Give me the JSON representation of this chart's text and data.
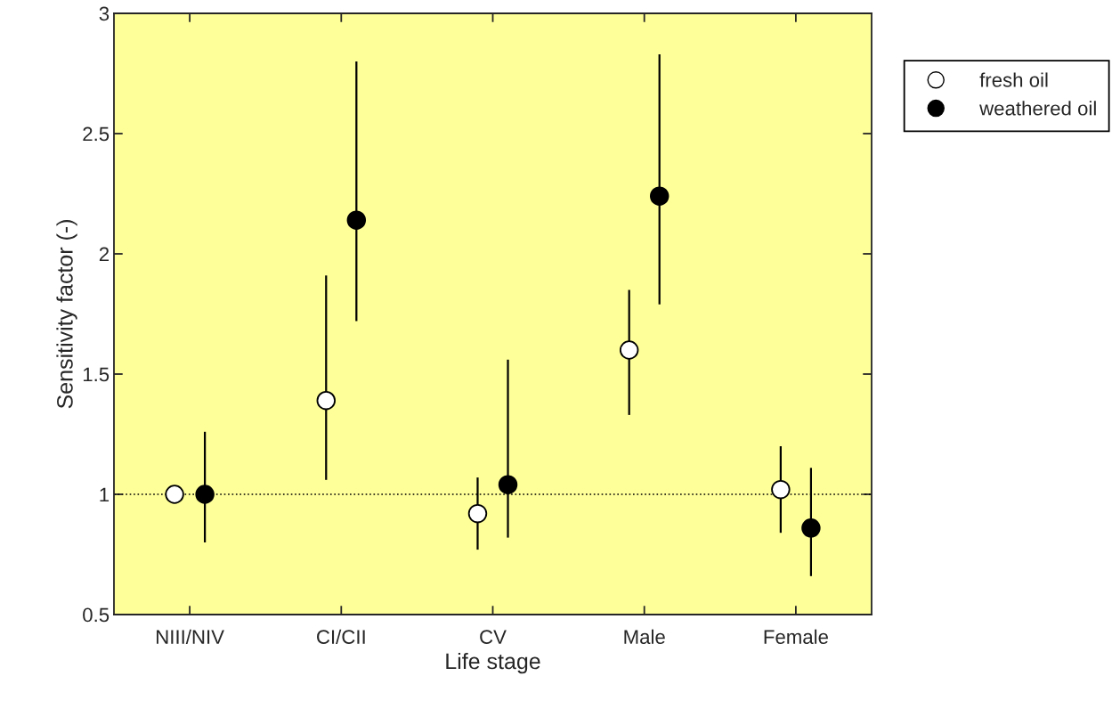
{
  "chart_data": {
    "type": "scatter",
    "xlabel": "Life stage",
    "ylabel": "Sensitivity factor (-)",
    "categories": [
      "NIII/NIV",
      "CI/CII",
      "CV",
      "Male",
      "Female"
    ],
    "series": [
      {
        "name": "fresh oil",
        "color": "#ffffff",
        "values": [
          1.0,
          1.39,
          0.92,
          1.6,
          1.02
        ],
        "errors": [
          null,
          [
            1.06,
            1.91
          ],
          [
            0.77,
            1.07
          ],
          [
            1.33,
            1.85
          ],
          [
            0.84,
            1.2
          ]
        ]
      },
      {
        "name": "weathered oil",
        "color": "#000000",
        "values": [
          1.0,
          2.14,
          1.04,
          2.24,
          0.86
        ],
        "errors": [
          [
            0.8,
            1.26
          ],
          [
            1.72,
            2.8
          ],
          [
            0.82,
            1.56
          ],
          [
            1.79,
            2.83
          ],
          [
            0.66,
            1.11
          ]
        ]
      }
    ],
    "ylim": [
      0.5,
      3
    ],
    "yticks": [
      0.5,
      1,
      1.5,
      2,
      2.5,
      3
    ],
    "ref_lines": [
      {
        "axis": "y",
        "value": 1,
        "line_style": "dotted",
        "color": "#000000"
      }
    ],
    "marker": "circle",
    "grid": false,
    "legend": "top right"
  }
}
